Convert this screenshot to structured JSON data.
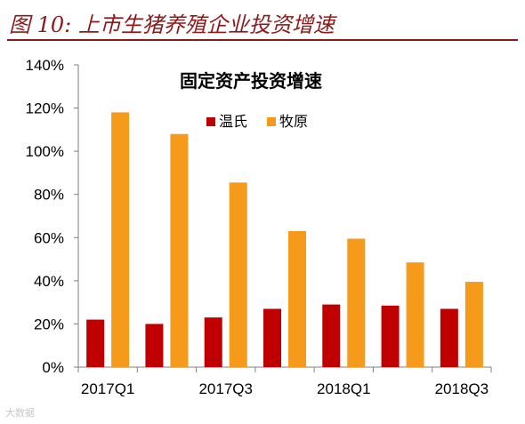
{
  "figure_title": "图 10:  上市生猪养殖企业投资增速",
  "watermark": "大数据",
  "chart_data": {
    "type": "bar",
    "title": "固定资产投资增速",
    "categories": [
      "2017Q1",
      "2017Q2",
      "2017Q3",
      "2017Q4",
      "2018Q1",
      "2018Q2",
      "2018Q3"
    ],
    "tick_labels_shown": [
      "2017Q1",
      "",
      "2017Q3",
      "",
      "2018Q1",
      "",
      "2018Q3"
    ],
    "series": [
      {
        "name": "温氏",
        "color": "#c00000",
        "values": [
          22,
          20,
          23,
          27,
          29,
          28.5,
          27
        ]
      },
      {
        "name": "牧原",
        "color": "#f59a1b",
        "values": [
          118,
          108,
          85.5,
          63,
          59.5,
          48.5,
          39.5
        ]
      }
    ],
    "ylim": [
      0,
      140
    ],
    "yticks": [
      0,
      20,
      40,
      60,
      80,
      100,
      120,
      140
    ],
    "ytick_labels": [
      "0%",
      "20%",
      "40%",
      "60%",
      "80%",
      "100%",
      "120%",
      "140%"
    ],
    "xlabel": "",
    "ylabel": "",
    "legend_position": "top-center",
    "grid": false
  }
}
